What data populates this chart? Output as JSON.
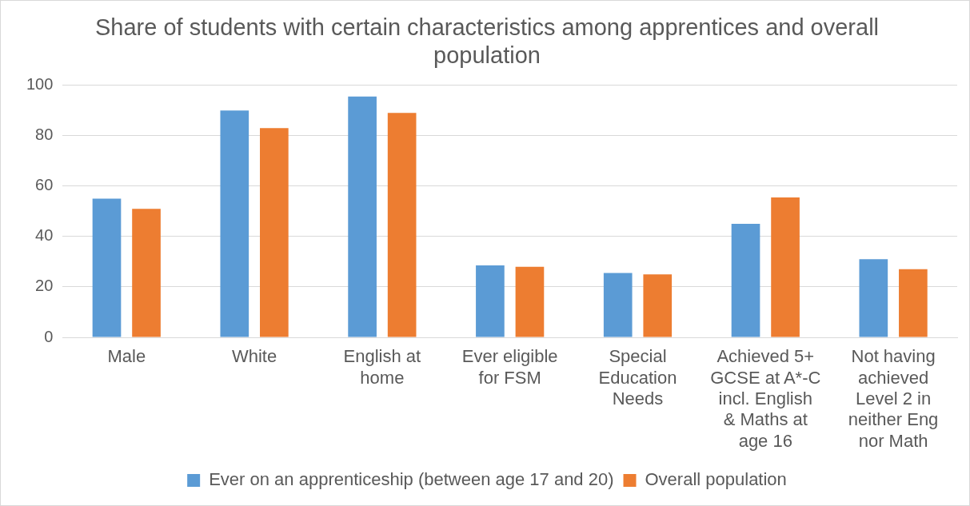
{
  "chart_data": {
    "type": "bar",
    "title": "Share of students with certain characteristics among apprentices and overall population",
    "categories": [
      "Male",
      "White",
      "English at home",
      "Ever eligible for FSM",
      "Special Education Needs",
      "Achieved 5+ GCSE at A*-C incl. English & Maths at age 16",
      "Not having achieved Level 2 in neither Eng nor Math"
    ],
    "series": [
      {
        "name": "Ever on an apprenticeship (between age 17 and 20)",
        "color": "#5b9bd5",
        "values": [
          55,
          90,
          95.5,
          28.5,
          25.5,
          45,
          31
        ]
      },
      {
        "name": "Overall population",
        "color": "#ed7d31",
        "values": [
          51,
          83,
          89,
          28,
          25,
          55.5,
          27
        ]
      }
    ],
    "ylim": [
      0,
      100
    ],
    "yticks": [
      0,
      20,
      40,
      60,
      80,
      100
    ],
    "grid": "y",
    "legend": "bottom"
  }
}
